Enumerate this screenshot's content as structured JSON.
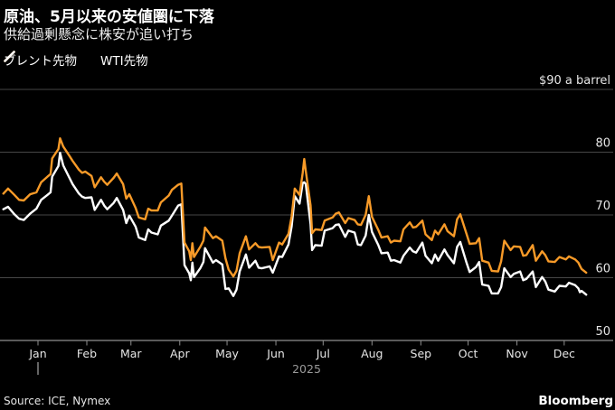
{
  "header": {
    "title": "原油、5月以来の安値圏に下落",
    "subtitle": "供給過剰懸念に株安が追い打ち"
  },
  "legend": {
    "items": [
      {
        "label": "ブレント先物",
        "color": "#F79A28",
        "marker": "slash-icon"
      },
      {
        "label": "WTI先物",
        "color": "#FFFFFF",
        "marker": "slash-icon"
      }
    ]
  },
  "footer": {
    "source": "Source: ICE, Nymex",
    "brand": "Bloomberg"
  },
  "colors": {
    "background": "#000000",
    "grid": "#464646",
    "axis": "#8f8f8f",
    "tick_label": "#e6e6e6",
    "year_label": "#999999",
    "brent": "#F79A28",
    "wti": "#FFFFFF"
  },
  "chart_data": {
    "type": "line",
    "title": "原油、5月以来の安値圏に下落",
    "subtitle": "供給過剰懸念に株安が追い打ち",
    "ylabel": "$90 a barrel",
    "ylim": [
      50,
      90
    ],
    "y_ticks": [
      90,
      80,
      70,
      60,
      50
    ],
    "y_tick_labels": [
      "$90 a barrel",
      "80",
      "70",
      "60",
      "50"
    ],
    "x_tick_labels": [
      "Jan",
      "Feb",
      "Mar",
      "Apr",
      "May",
      "Jun",
      "Jul",
      "Aug",
      "Sep",
      "Oct",
      "Nov",
      "Dec"
    ],
    "year_label": "2025",
    "grid": "horizontal",
    "legend_position": "top-left",
    "series": [
      {
        "name": "ブレント先物",
        "color": "#F79A28",
        "field": 1
      },
      {
        "name": "WTI先物",
        "color": "#FFFFFF",
        "field": 2
      }
    ],
    "points": [
      [
        "2024-12-10",
        73.4,
        70.9
      ],
      [
        "2024-12-13",
        74.2,
        71.3
      ],
      [
        "2024-12-17",
        73.2,
        70.1
      ],
      [
        "2024-12-20",
        72.4,
        69.4
      ],
      [
        "2024-12-23",
        72.3,
        69.2
      ],
      [
        "2024-12-27",
        73.3,
        70.2
      ],
      [
        "2024-12-31",
        73.6,
        71.0
      ],
      [
        "2025-01-03",
        75.2,
        72.4
      ],
      [
        "2025-01-07",
        76.1,
        73.2
      ],
      [
        "2025-01-09",
        76.5,
        73.6
      ],
      [
        "2025-01-10",
        79.0,
        76.1
      ],
      [
        "2025-01-14",
        80.5,
        77.8
      ],
      [
        "2025-01-15",
        82.2,
        79.9
      ],
      [
        "2025-01-17",
        80.9,
        77.9
      ],
      [
        "2025-01-21",
        79.4,
        75.9
      ],
      [
        "2025-01-23",
        78.6,
        74.9
      ],
      [
        "2025-01-27",
        77.2,
        73.4
      ],
      [
        "2025-01-29",
        76.7,
        72.9
      ],
      [
        "2025-01-31",
        76.9,
        72.7
      ],
      [
        "2025-02-04",
        76.2,
        72.8
      ],
      [
        "2025-02-06",
        74.4,
        70.8
      ],
      [
        "2025-02-10",
        76.0,
        72.4
      ],
      [
        "2025-02-12",
        75.3,
        71.5
      ],
      [
        "2025-02-14",
        74.8,
        70.9
      ],
      [
        "2025-02-18",
        75.9,
        71.9
      ],
      [
        "2025-02-20",
        76.6,
        72.7
      ],
      [
        "2025-02-24",
        74.9,
        70.8
      ],
      [
        "2025-02-26",
        72.6,
        68.7
      ],
      [
        "2025-02-28",
        73.3,
        69.9
      ],
      [
        "2025-03-04",
        71.1,
        68.1
      ],
      [
        "2025-03-06",
        69.6,
        66.4
      ],
      [
        "2025-03-10",
        69.3,
        66.0
      ],
      [
        "2025-03-12",
        71.0,
        67.7
      ],
      [
        "2025-03-14",
        70.7,
        67.2
      ],
      [
        "2025-03-18",
        70.7,
        66.9
      ],
      [
        "2025-03-20",
        72.0,
        68.3
      ],
      [
        "2025-03-25",
        73.1,
        69.1
      ],
      [
        "2025-03-27",
        74.0,
        69.9
      ],
      [
        "2025-03-31",
        74.8,
        71.5
      ],
      [
        "2025-04-02",
        75.0,
        71.7
      ],
      [
        "2025-04-04",
        65.6,
        62.0
      ],
      [
        "2025-04-07",
        64.2,
        60.7
      ],
      [
        "2025-04-08",
        62.8,
        59.6
      ],
      [
        "2025-04-09",
        65.5,
        62.4
      ],
      [
        "2025-04-10",
        63.3,
        60.1
      ],
      [
        "2025-04-14",
        64.9,
        61.5
      ],
      [
        "2025-04-16",
        65.9,
        62.5
      ],
      [
        "2025-04-17",
        68.0,
        64.7
      ],
      [
        "2025-04-22",
        66.3,
        62.4
      ],
      [
        "2025-04-24",
        66.6,
        62.8
      ],
      [
        "2025-04-28",
        65.9,
        62.1
      ],
      [
        "2025-04-30",
        63.1,
        58.2
      ],
      [
        "2025-05-02",
        61.3,
        58.3
      ],
      [
        "2025-05-05",
        60.2,
        57.1
      ],
      [
        "2025-05-07",
        61.1,
        58.1
      ],
      [
        "2025-05-09",
        63.9,
        61.0
      ],
      [
        "2025-05-13",
        66.6,
        63.7
      ],
      [
        "2025-05-15",
        64.5,
        61.6
      ],
      [
        "2025-05-19",
        65.5,
        62.7
      ],
      [
        "2025-05-21",
        64.9,
        61.6
      ],
      [
        "2025-05-23",
        64.8,
        61.5
      ],
      [
        "2025-05-28",
        64.9,
        61.8
      ],
      [
        "2025-05-30",
        62.8,
        60.8
      ],
      [
        "2025-06-03",
        65.6,
        63.4
      ],
      [
        "2025-06-05",
        65.3,
        63.3
      ],
      [
        "2025-06-09",
        67.0,
        65.3
      ],
      [
        "2025-06-11",
        69.8,
        68.2
      ],
      [
        "2025-06-13",
        74.2,
        73.0
      ],
      [
        "2025-06-16",
        73.2,
        71.8
      ],
      [
        "2025-06-18",
        76.7,
        75.1
      ],
      [
        "2025-06-19",
        78.9,
        75.2
      ],
      [
        "2025-06-20",
        77.0,
        74.9
      ],
      [
        "2025-06-23",
        71.5,
        68.5
      ],
      [
        "2025-06-24",
        67.1,
        64.4
      ],
      [
        "2025-06-26",
        67.7,
        65.2
      ],
      [
        "2025-06-30",
        67.6,
        65.1
      ],
      [
        "2025-07-02",
        69.1,
        67.5
      ],
      [
        "2025-07-07",
        69.6,
        67.9
      ],
      [
        "2025-07-09",
        70.2,
        68.4
      ],
      [
        "2025-07-11",
        70.4,
        68.5
      ],
      [
        "2025-07-15",
        68.7,
        66.5
      ],
      [
        "2025-07-17",
        69.5,
        67.5
      ],
      [
        "2025-07-21",
        69.2,
        67.2
      ],
      [
        "2025-07-23",
        68.5,
        65.3
      ],
      [
        "2025-07-25",
        68.4,
        65.2
      ],
      [
        "2025-07-28",
        70.0,
        66.7
      ],
      [
        "2025-07-30",
        73.0,
        70.0
      ],
      [
        "2025-08-01",
        69.7,
        67.3
      ],
      [
        "2025-08-05",
        67.6,
        65.2
      ],
      [
        "2025-08-07",
        66.4,
        63.9
      ],
      [
        "2025-08-11",
        66.6,
        64.0
      ],
      [
        "2025-08-13",
        65.6,
        62.7
      ],
      [
        "2025-08-15",
        65.9,
        62.8
      ],
      [
        "2025-08-19",
        65.8,
        62.4
      ],
      [
        "2025-08-21",
        67.7,
        63.5
      ],
      [
        "2025-08-25",
        68.8,
        64.8
      ],
      [
        "2025-08-27",
        68.0,
        64.2
      ],
      [
        "2025-08-29",
        68.1,
        64.0
      ],
      [
        "2025-09-02",
        69.1,
        65.6
      ],
      [
        "2025-09-04",
        66.9,
        63.5
      ],
      [
        "2025-09-08",
        66.0,
        62.3
      ],
      [
        "2025-09-10",
        67.5,
        63.7
      ],
      [
        "2025-09-12",
        66.9,
        62.7
      ],
      [
        "2025-09-16",
        68.5,
        64.5
      ],
      [
        "2025-09-18",
        67.4,
        63.6
      ],
      [
        "2025-09-22",
        66.6,
        62.3
      ],
      [
        "2025-09-24",
        69.3,
        64.9
      ],
      [
        "2025-09-26",
        70.1,
        65.7
      ],
      [
        "2025-09-30",
        67.0,
        62.4
      ],
      [
        "2025-10-02",
        65.4,
        60.9
      ],
      [
        "2025-10-06",
        65.5,
        61.7
      ],
      [
        "2025-10-08",
        66.3,
        62.5
      ],
      [
        "2025-10-10",
        62.7,
        58.9
      ],
      [
        "2025-10-14",
        62.4,
        58.7
      ],
      [
        "2025-10-16",
        61.1,
        57.5
      ],
      [
        "2025-10-20",
        61.0,
        57.5
      ],
      [
        "2025-10-22",
        62.6,
        58.5
      ],
      [
        "2025-10-24",
        65.9,
        61.5
      ],
      [
        "2025-10-28",
        64.4,
        60.1
      ],
      [
        "2025-10-30",
        65.0,
        60.6
      ],
      [
        "2025-11-03",
        64.9,
        61.0
      ],
      [
        "2025-11-05",
        63.5,
        59.6
      ],
      [
        "2025-11-07",
        63.6,
        59.8
      ],
      [
        "2025-11-11",
        65.2,
        61.0
      ],
      [
        "2025-11-13",
        62.7,
        58.5
      ],
      [
        "2025-11-17",
        64.2,
        60.1
      ],
      [
        "2025-11-19",
        63.6,
        59.4
      ],
      [
        "2025-11-21",
        62.6,
        58.1
      ],
      [
        "2025-11-25",
        62.5,
        57.8
      ],
      [
        "2025-11-28",
        63.3,
        58.7
      ],
      [
        "2025-12-02",
        62.9,
        58.6
      ],
      [
        "2025-12-04",
        63.4,
        59.2
      ],
      [
        "2025-12-08",
        62.9,
        58.8
      ],
      [
        "2025-12-10",
        62.4,
        58.3
      ],
      [
        "2025-12-11",
        61.9,
        57.7
      ],
      [
        "2025-12-12",
        61.4,
        57.9
      ],
      [
        "2025-12-15",
        60.8,
        57.3
      ]
    ]
  }
}
